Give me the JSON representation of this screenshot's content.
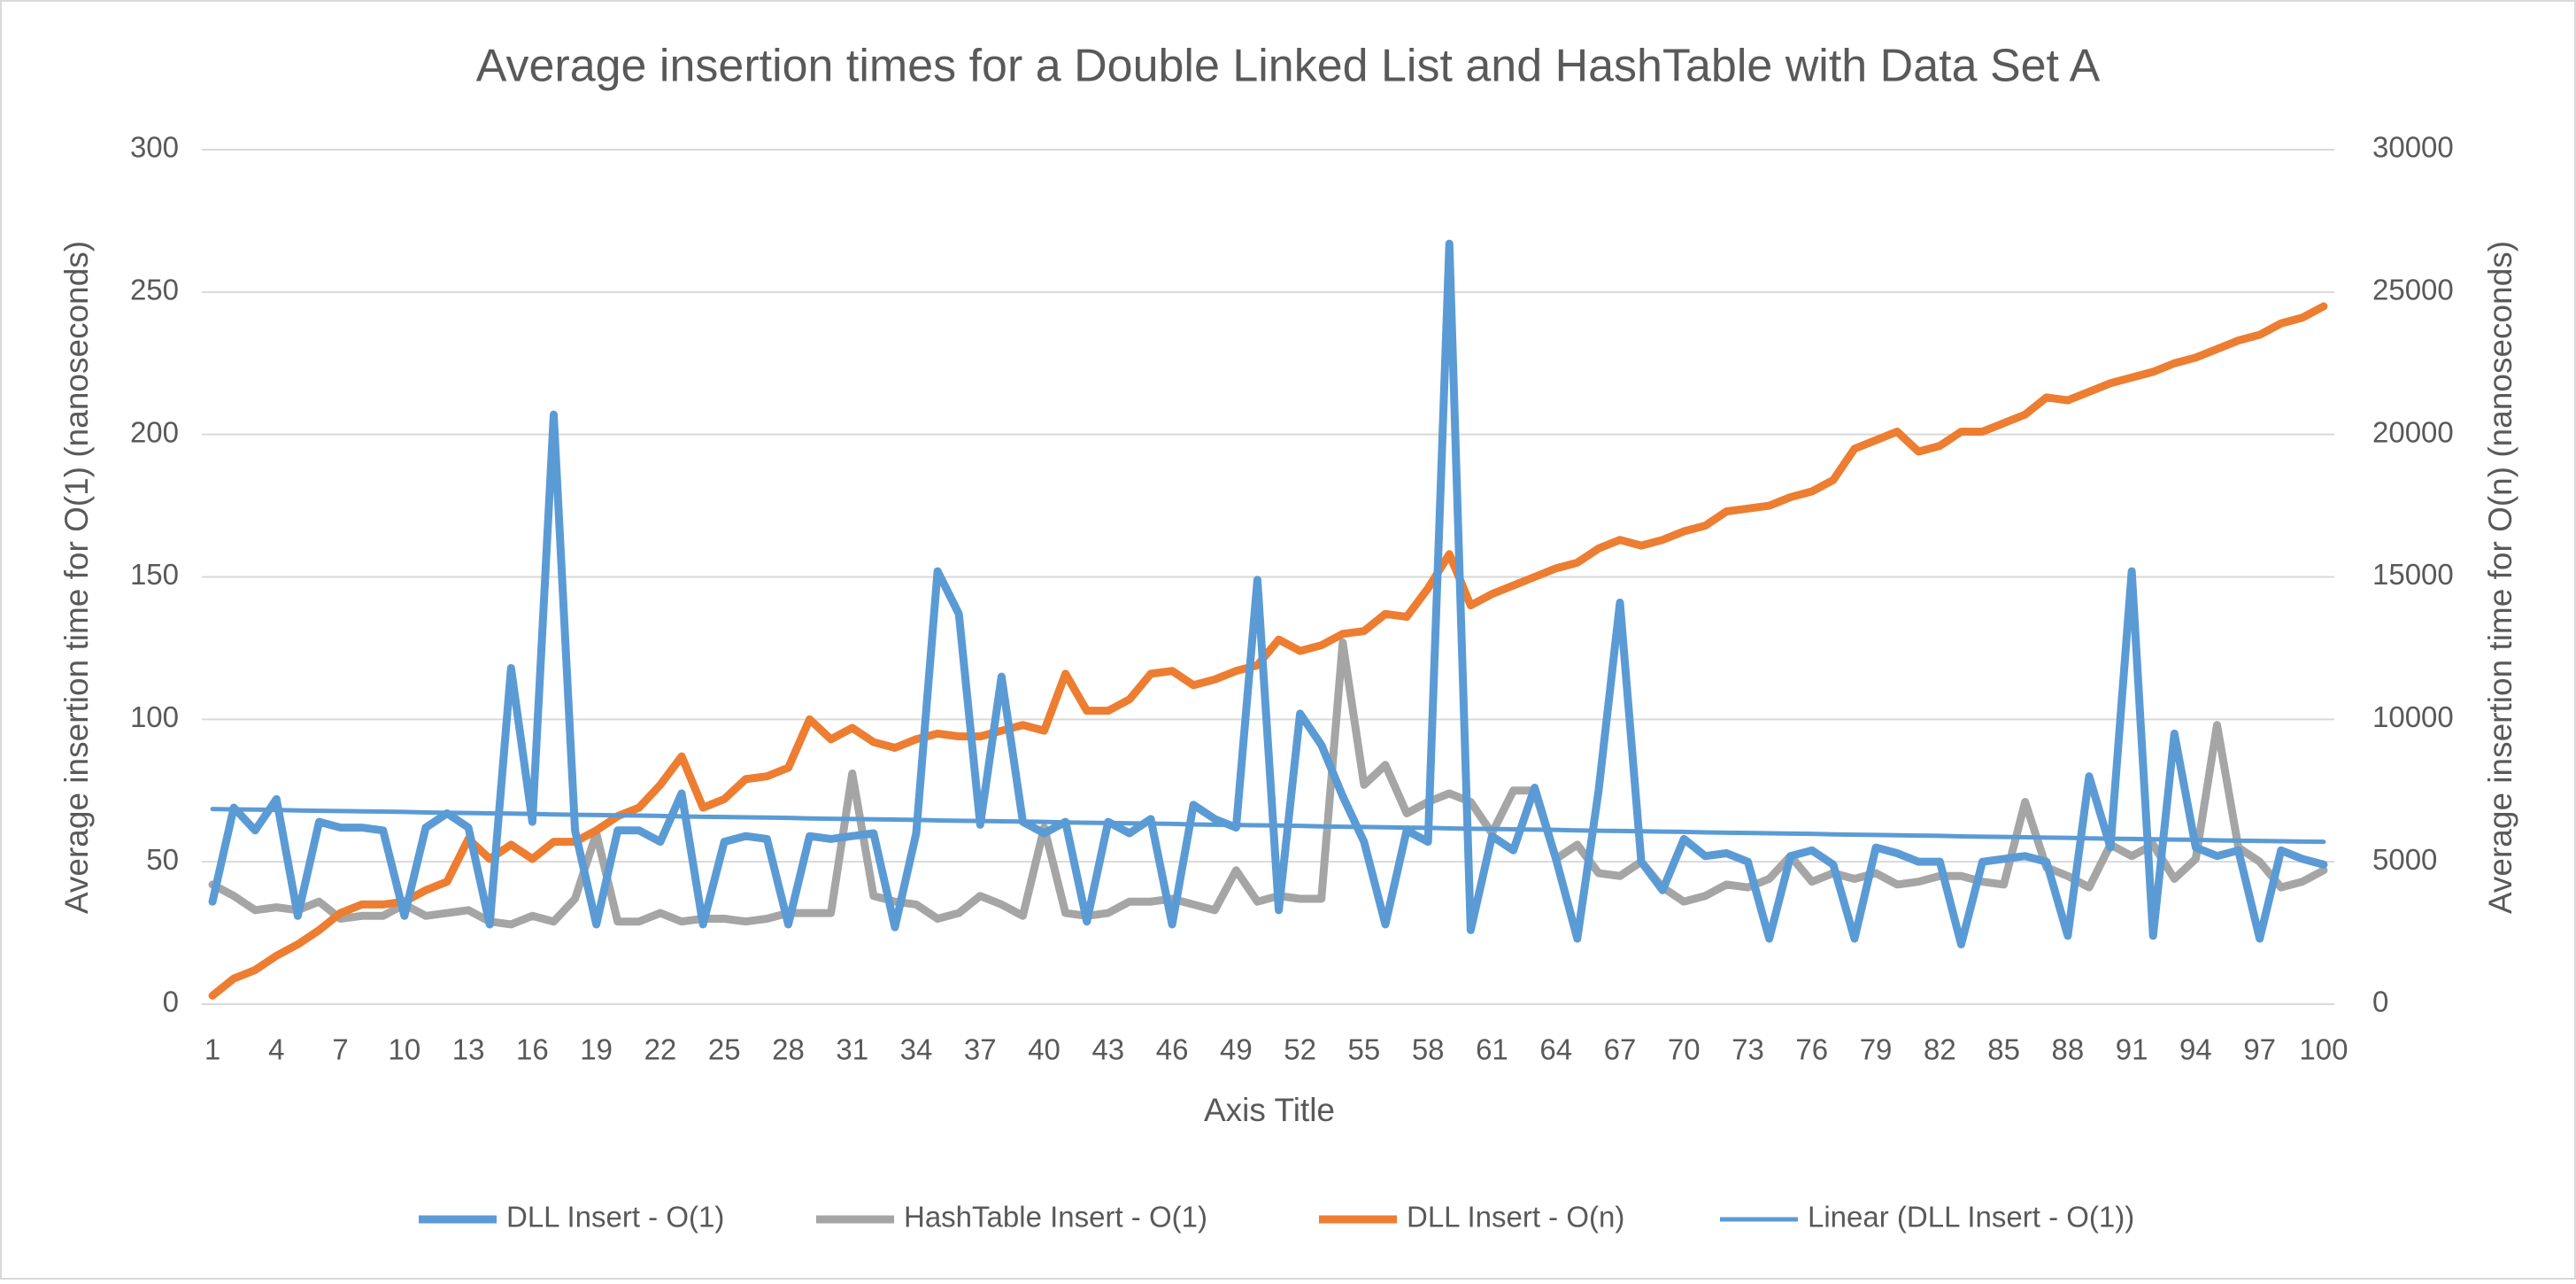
{
  "chart_data": {
    "type": "line",
    "title": "Average insertion times for a Double Linked List and HashTable with Data Set A",
    "x_label": "Axis Title",
    "y_label": "Average insertion time for O(1) (nanoseconds)",
    "y2_label": "Average insertion time for O(n) (nanoseconds)",
    "categories": [
      1,
      null,
      null,
      4,
      null,
      null,
      7,
      null,
      null,
      10,
      null,
      null,
      13,
      null,
      null,
      16,
      null,
      null,
      19,
      null,
      null,
      22,
      null,
      null,
      25,
      null,
      null,
      28,
      null,
      null,
      31,
      null,
      null,
      34,
      null,
      null,
      37,
      null,
      null,
      40,
      null,
      null,
      43,
      null,
      null,
      46,
      null,
      null,
      49,
      null,
      null,
      52,
      null,
      null,
      55,
      null,
      null,
      58,
      null,
      null,
      61,
      null,
      null,
      64,
      null,
      null,
      67,
      null,
      null,
      70,
      null,
      null,
      73,
      null,
      null,
      76,
      null,
      null,
      79,
      null,
      null,
      82,
      null,
      null,
      85,
      null,
      null,
      88,
      null,
      null,
      91,
      null,
      null,
      94,
      null,
      null,
      97,
      null,
      null,
      100
    ],
    "ylim": [
      0,
      300
    ],
    "yticks": [
      0,
      50,
      100,
      150,
      200,
      250,
      300
    ],
    "y2lim": [
      0,
      30000
    ],
    "y2ticks": [
      0,
      5000,
      10000,
      15000,
      20000,
      25000,
      30000
    ],
    "grid": true,
    "legend": "bottom",
    "series": [
      {
        "name": "DLL Insert - O(1)",
        "color": "#5b9bd5",
        "values": [
          36,
          69,
          61,
          72,
          31,
          64,
          62,
          62,
          61,
          31,
          62,
          67,
          62,
          28,
          118,
          64,
          207,
          61,
          28,
          61,
          61,
          57,
          74,
          28,
          57,
          59,
          58,
          28,
          59,
          58,
          59,
          60,
          27,
          60,
          152,
          137,
          63,
          115,
          64,
          60,
          64,
          29,
          64,
          60,
          65,
          28,
          70,
          65,
          62,
          149,
          33,
          102,
          91,
          73,
          57,
          28,
          61,
          57,
          267,
          26,
          59,
          54,
          76,
          51,
          23,
          75,
          141,
          50,
          40,
          58,
          52,
          53,
          50,
          23,
          52,
          54,
          49,
          23,
          55,
          53,
          50,
          50,
          21,
          50,
          51,
          52,
          50,
          24,
          80,
          55,
          152,
          24,
          95,
          55,
          52,
          54,
          23,
          54,
          51,
          49
        ]
      },
      {
        "name": "HashTable Insert - O(1)",
        "color": "#a5a5a5",
        "values": [
          42,
          38,
          33,
          34,
          33,
          36,
          30,
          31,
          31,
          35,
          31,
          32,
          33,
          29,
          28,
          31,
          29,
          37,
          60,
          29,
          29,
          32,
          29,
          30,
          30,
          29,
          30,
          32,
          32,
          32,
          81,
          38,
          36,
          35,
          30,
          32,
          38,
          35,
          31,
          62,
          32,
          31,
          32,
          36,
          36,
          37,
          35,
          33,
          47,
          36,
          38,
          37,
          37,
          127,
          77,
          84,
          67,
          71,
          74,
          71,
          60,
          75,
          75,
          51,
          56,
          46,
          45,
          50,
          41,
          36,
          38,
          42,
          41,
          44,
          52,
          43,
          46,
          44,
          46,
          42,
          43,
          45,
          45,
          43,
          42,
          71,
          48,
          45,
          41,
          56,
          52,
          56,
          44,
          51,
          98,
          55,
          50,
          41,
          43,
          47
        ]
      },
      {
        "name": "DLL Insert - O(n)",
        "color": "#ed7d31",
        "axis": "y2",
        "values": [
          300,
          900,
          1200,
          1700,
          2100,
          2600,
          3200,
          3500,
          3500,
          3600,
          4000,
          4300,
          5800,
          5100,
          5600,
          5100,
          5700,
          5700,
          6100,
          6600,
          6900,
          7700,
          8700,
          6900,
          7200,
          7900,
          8000,
          8300,
          10000,
          9300,
          9700,
          9200,
          9000,
          9300,
          9500,
          9400,
          9400,
          9600,
          9800,
          9600,
          11600,
          10300,
          10300,
          10700,
          11600,
          11700,
          11200,
          11400,
          11700,
          11900,
          12800,
          12400,
          12600,
          13000,
          13100,
          13700,
          13600,
          14600,
          15800,
          14000,
          14400,
          14700,
          15000,
          15300,
          15500,
          16000,
          16300,
          16100,
          16300,
          16600,
          16800,
          17300,
          17400,
          17500,
          17800,
          18000,
          18400,
          19500,
          19800,
          20100,
          19400,
          19600,
          20100,
          20100,
          20400,
          20700,
          21300,
          21200,
          21500,
          21800,
          22000,
          22200,
          22500,
          22700,
          23000,
          23300,
          23500,
          23900,
          24100,
          24500
        ]
      },
      {
        "name": "Linear (DLL Insert - O(1))",
        "color": "#5b9bd5",
        "kind": "trendline",
        "values": [
          68.5,
          68.4,
          68.3,
          68.2,
          68.0,
          67.9,
          67.8,
          67.7,
          67.6,
          67.5,
          67.3,
          67.2,
          67.1,
          67.0,
          66.9,
          66.8,
          66.6,
          66.5,
          66.4,
          66.3,
          66.2,
          66.1,
          65.9,
          65.8,
          65.7,
          65.6,
          65.5,
          65.4,
          65.2,
          65.1,
          65.0,
          64.9,
          64.8,
          64.7,
          64.5,
          64.4,
          64.3,
          64.2,
          64.1,
          64.0,
          63.8,
          63.7,
          63.6,
          63.5,
          63.4,
          63.3,
          63.1,
          63.0,
          62.9,
          62.8,
          62.7,
          62.6,
          62.4,
          62.3,
          62.2,
          62.1,
          62.0,
          61.9,
          61.7,
          61.6,
          61.5,
          61.4,
          61.3,
          61.2,
          61.0,
          60.9,
          60.8,
          60.7,
          60.6,
          60.5,
          60.3,
          60.2,
          60.1,
          60.0,
          59.9,
          59.8,
          59.6,
          59.5,
          59.4,
          59.3,
          59.2,
          59.1,
          58.9,
          58.8,
          58.7,
          58.6,
          58.5,
          58.4,
          58.2,
          58.1,
          58.0,
          57.9,
          57.8,
          57.7,
          57.5,
          57.4,
          57.3,
          57.2,
          57.1,
          57.0
        ]
      }
    ]
  }
}
